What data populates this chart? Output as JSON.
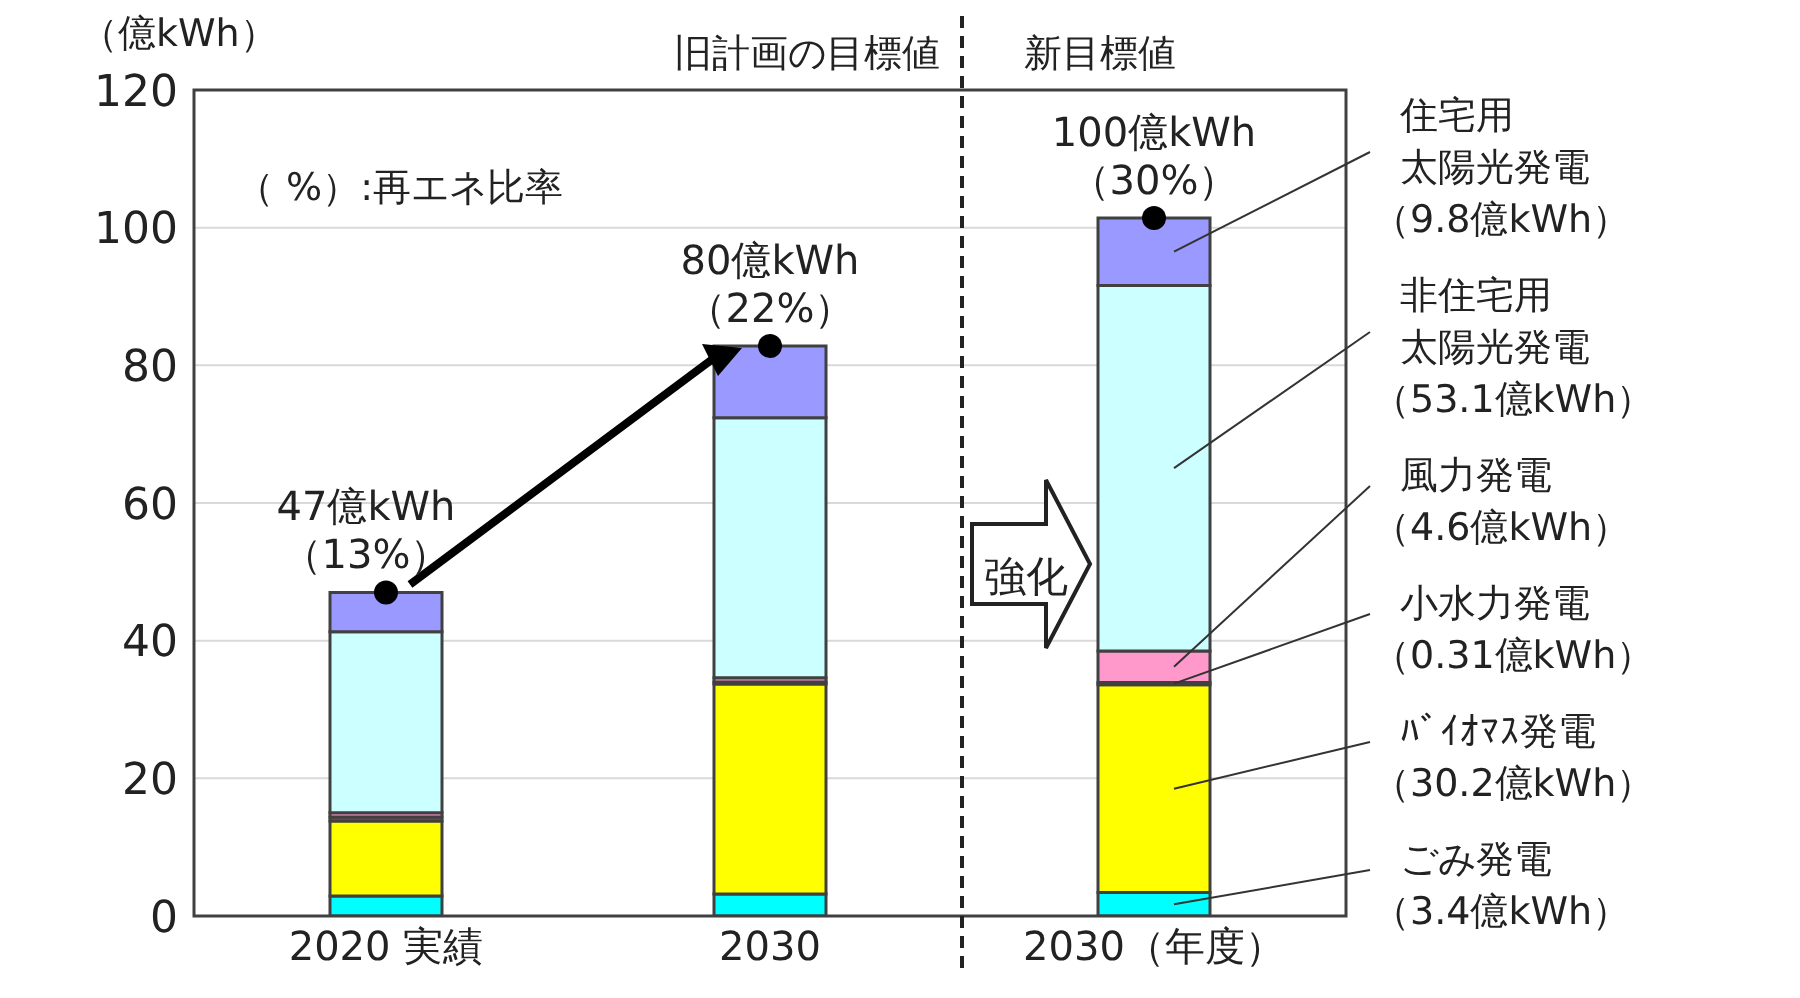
{
  "chart_data": {
    "type": "bar",
    "stacked": true,
    "ylabel": "（億kWh）",
    "categories": [
      "2020 実績",
      "2030",
      "2030（年度）"
    ],
    "series": [
      {
        "name": "ごみ発電",
        "color": "#00ffff",
        "values": [
          2.9,
          3.2,
          3.4
        ],
        "value_labels": [
          null,
          null,
          "（3.4億kWh）"
        ]
      },
      {
        "name": "ﾊﾞｲｵﾏｽ発電",
        "color": "#ffff00",
        "values": [
          10.9,
          30.5,
          30.2
        ],
        "value_labels": [
          null,
          null,
          "（30.2億kWh）"
        ]
      },
      {
        "name": "小水力発電",
        "color": "#a04060",
        "values": [
          0.6,
          0.3,
          0.31
        ],
        "value_labels": [
          null,
          null,
          "（0.31億kWh）"
        ]
      },
      {
        "name": "風力発電",
        "color": "#ff99cc",
        "values": [
          0.6,
          0.6,
          4.6
        ],
        "value_labels": [
          null,
          null,
          "（4.6億kWh）"
        ]
      },
      {
        "name": "非住宅用太陽光発電",
        "color": "#ccffff",
        "values": [
          26.3,
          37.8,
          53.1
        ],
        "value_labels": [
          null,
          null,
          "（53.1億kWh）"
        ]
      },
      {
        "name": "住宅用太陽光発電",
        "color": "#9999ff",
        "values": [
          5.7,
          10.4,
          9.8
        ],
        "value_labels": [
          null,
          null,
          "（9.8億kWh）"
        ]
      },
      {
        "type": "scatter",
        "color": "#000000",
        "marker": "circle",
        "values": [
          47,
          82.8,
          101.4
        ]
      }
    ],
    "annotations": [
      {
        "text": "47億kWh\n（13%）",
        "x": "2020 実績",
        "y": 47
      },
      {
        "text": "80億kWh\n（22%）",
        "x": "2030",
        "y": 82.8
      },
      {
        "text": "100億kWh\n（30%）",
        "x": "2030（年度）",
        "y": 101.4
      },
      "（  %）:再エネ比率",
      "旧計画の目標値",
      "新目標値",
      "強化"
    ],
    "ylim": [
      0,
      120
    ],
    "yticks": [
      0,
      20,
      40,
      60,
      80,
      100,
      120
    ],
    "grid": "y",
    "legend": false
  }
}
